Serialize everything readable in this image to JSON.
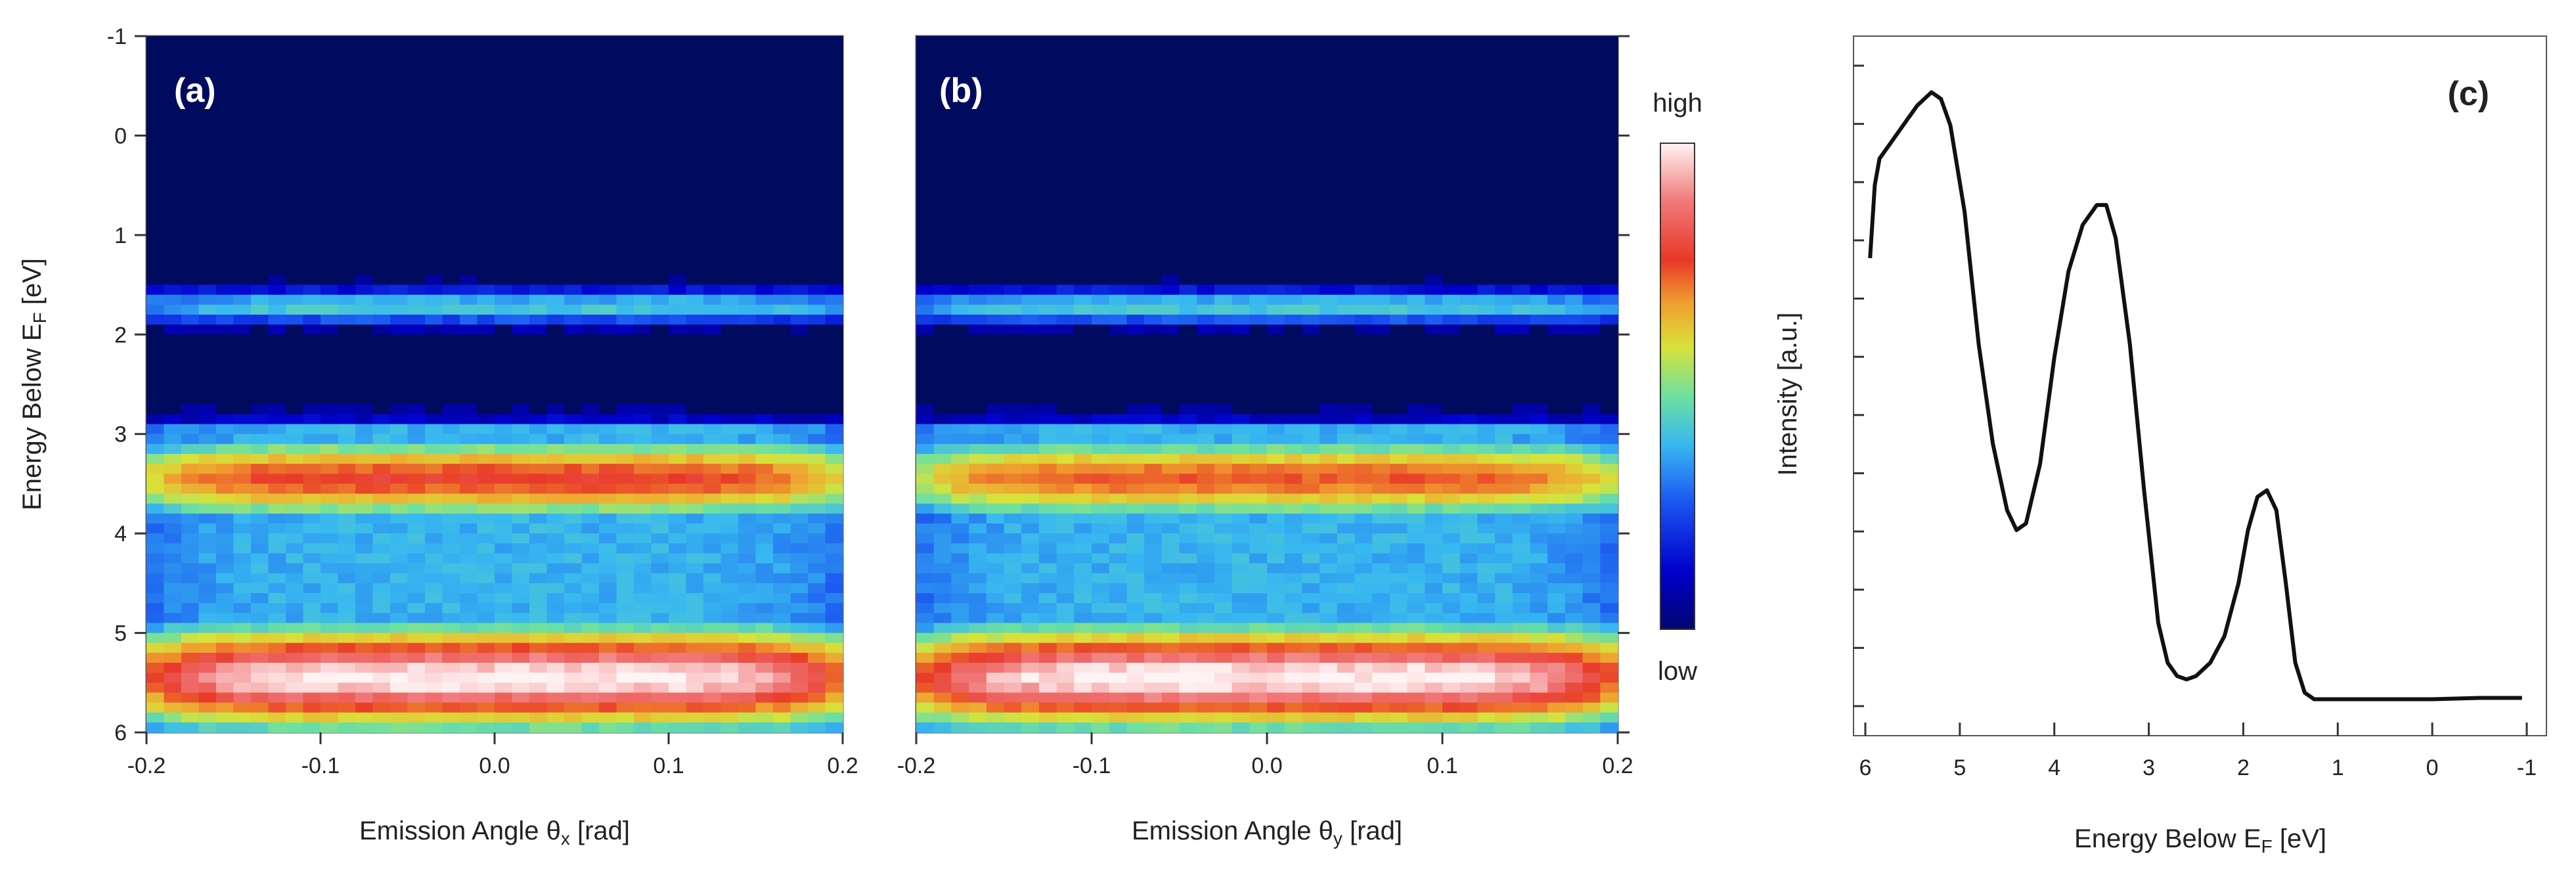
{
  "colors": {
    "background": "#000a5e",
    "colormap": [
      "#020670",
      "#0000cc",
      "#1a55f0",
      "#38b8f0",
      "#6ee0a0",
      "#d8e23a",
      "#f0a030",
      "#e83828",
      "#f07878",
      "#fff4f4"
    ],
    "line": "#111111"
  },
  "chart_data": [
    {
      "type": "heatmap",
      "panel_label": "(a)",
      "xlabel": "Emission Angle θ",
      "xlabel_sub": "x",
      "xlabel_unit": " [rad]",
      "ylabel": "Energy Below E",
      "ylabel_sub": "F",
      "ylabel_unit": " [eV]",
      "xlim": [
        -0.2,
        0.2
      ],
      "ylim": [
        -1,
        6
      ],
      "xticks": [
        "-0.2",
        "-0.1",
        "0.0",
        "0.1",
        "0.2"
      ],
      "yticks": [
        "-1",
        "0",
        "1",
        "2",
        "3",
        "4",
        "5",
        "6"
      ],
      "bands": [
        {
          "energy_center": 1.72,
          "width": 0.17,
          "intensity": 0.38
        },
        {
          "energy_center": 3.45,
          "width": 0.42,
          "intensity": 0.78
        },
        {
          "energy_center": 5.45,
          "width": 0.55,
          "intensity": 1.0
        }
      ]
    },
    {
      "type": "heatmap",
      "panel_label": "(b)",
      "xlabel": "Emission Angle θ",
      "xlabel_sub": "y",
      "xlabel_unit": " [rad]",
      "xlim": [
        -0.2,
        0.2
      ],
      "ylim": [
        -1,
        6
      ],
      "xticks": [
        "-0.2",
        "-0.1",
        "0.0",
        "0.1",
        "0.2"
      ],
      "bands": [
        {
          "energy_center": 1.72,
          "width": 0.17,
          "intensity": 0.38
        },
        {
          "energy_center": 3.45,
          "width": 0.42,
          "intensity": 0.74
        },
        {
          "energy_center": 5.45,
          "width": 0.55,
          "intensity": 1.0
        }
      ],
      "colorbar": {
        "high_label": "high",
        "low_label": "low"
      }
    },
    {
      "type": "line",
      "panel_label": "(c)",
      "xlabel": "Energy Below E",
      "xlabel_sub": "F",
      "xlabel_unit": " [eV]",
      "ylabel": "Intensity [a.u.]",
      "xlim": [
        6,
        -1
      ],
      "ylim": [
        0,
        1
      ],
      "xticks": [
        "6",
        "5",
        "4",
        "3",
        "2",
        "1",
        "0",
        "-1"
      ],
      "x": [
        5.95,
        5.9,
        5.85,
        5.75,
        5.6,
        5.45,
        5.3,
        5.2,
        5.1,
        4.95,
        4.8,
        4.65,
        4.5,
        4.4,
        4.3,
        4.15,
        4.0,
        3.85,
        3.7,
        3.55,
        3.45,
        3.35,
        3.2,
        3.05,
        2.9,
        2.8,
        2.7,
        2.6,
        2.5,
        2.35,
        2.2,
        2.05,
        1.95,
        1.85,
        1.75,
        1.65,
        1.55,
        1.45,
        1.35,
        1.25,
        1.0,
        0.5,
        0.0,
        -0.5,
        -0.95
      ],
      "values": [
        0.71,
        0.82,
        0.86,
        0.88,
        0.91,
        0.94,
        0.96,
        0.95,
        0.91,
        0.78,
        0.58,
        0.43,
        0.33,
        0.3,
        0.31,
        0.4,
        0.56,
        0.69,
        0.76,
        0.79,
        0.79,
        0.74,
        0.58,
        0.36,
        0.16,
        0.1,
        0.08,
        0.075,
        0.08,
        0.1,
        0.14,
        0.22,
        0.3,
        0.35,
        0.36,
        0.33,
        0.22,
        0.1,
        0.055,
        0.045,
        0.045,
        0.045,
        0.045,
        0.047,
        0.047
      ]
    }
  ]
}
